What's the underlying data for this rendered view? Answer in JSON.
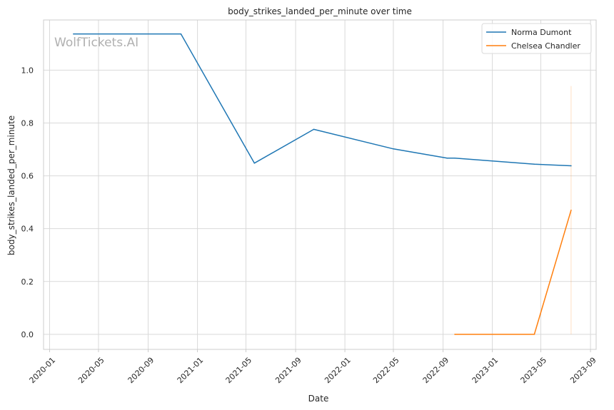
{
  "chart_data": {
    "type": "line",
    "title": "body_strikes_landed_per_minute over time",
    "xlabel": "Date",
    "ylabel": "body_strikes_landed_per_minute",
    "watermark": "WolfTickets.AI",
    "x_ticks": [
      "2020-01",
      "2020-05",
      "2020-09",
      "2021-01",
      "2021-05",
      "2021-09",
      "2022-01",
      "2022-05",
      "2022-09",
      "2023-01",
      "2023-05",
      "2023-09"
    ],
    "y_ticks": [
      "0.0",
      "0.2",
      "0.4",
      "0.6",
      "0.8",
      "1.0"
    ],
    "xlim": [
      "2019-12-17",
      "2023-09-15"
    ],
    "ylim": [
      -0.057,
      1.19
    ],
    "grid": true,
    "legend_position": "top-right",
    "series": [
      {
        "name": "Norma Dumont",
        "color": "#1f77b4",
        "points": [
          {
            "x": "2020-02-29",
            "y": 1.137
          },
          {
            "x": "2020-11-21",
            "y": 1.137
          },
          {
            "x": "2021-05-22",
            "y": 0.648
          },
          {
            "x": "2021-10-16",
            "y": 0.776
          },
          {
            "x": "2022-05-01",
            "y": 0.702
          },
          {
            "x": "2022-09-11",
            "y": 0.667
          },
          {
            "x": "2022-09-30",
            "y": 0.667
          },
          {
            "x": "2023-04-15",
            "y": 0.644
          },
          {
            "x": "2023-07-15",
            "y": 0.638
          }
        ]
      },
      {
        "name": "Chelsea Chandler",
        "color": "#ff7f0e",
        "points": [
          {
            "x": "2022-09-30",
            "y": 0.0
          },
          {
            "x": "2023-04-15",
            "y": 0.0
          },
          {
            "x": "2023-07-15",
            "y": 0.47
          }
        ],
        "error_band": {
          "x": "2023-07-15",
          "low": 0.0,
          "high": 0.94
        }
      }
    ]
  }
}
